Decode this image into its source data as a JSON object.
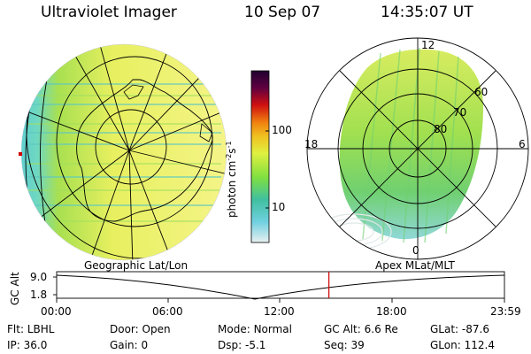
{
  "header": {
    "instrument": "Ultraviolet Imager",
    "date": "10 Sep 07",
    "time": "14:35:07 UT"
  },
  "colorbar": {
    "unit": "photon cm",
    "unit_exp1": "-2",
    "unit_mid": "s",
    "unit_exp2": "-1",
    "tick_100": "100",
    "tick_10": "10"
  },
  "polar": {
    "lt_top": "12",
    "lt_left": "18",
    "lt_right": "6",
    "lt_bottom": "0",
    "lat_60": "60",
    "lat_70": "70",
    "lat_80": "80"
  },
  "timeline": {
    "left_title": "Geographic Lat/Lon",
    "right_title": "Apex MLat/MLT",
    "axis_title": "GC Alt",
    "y_top": "9.0",
    "y_bottom": "1.8",
    "x_ticks": [
      "00:00",
      "06:00",
      "12:00",
      "18:00",
      "23:59"
    ],
    "current_time_fraction": 0.608
  },
  "status": {
    "row1": [
      {
        "label": "Flt:",
        "value": "LBHL"
      },
      {
        "label": "Door:",
        "value": "Open"
      },
      {
        "label": "Mode:",
        "value": "Normal"
      },
      {
        "label": "GC Alt:",
        "value": "6.6 Re"
      },
      {
        "label": "GLat:",
        "value": "-87.6"
      }
    ],
    "row2": [
      {
        "label": "IP:",
        "value": "36.0"
      },
      {
        "label": "Gain:",
        "value": "0"
      },
      {
        "label": "Dsp:",
        "value": "-5.1"
      },
      {
        "label": "Seq:",
        "value": "39"
      },
      {
        "label": "GLon:",
        "value": "112.4"
      }
    ]
  },
  "colors": {
    "accent_marker": "#d00000",
    "aurora_yellow": "#f0f060",
    "aurora_green": "#90e050",
    "aurora_cyan": "#60d0d0"
  }
}
